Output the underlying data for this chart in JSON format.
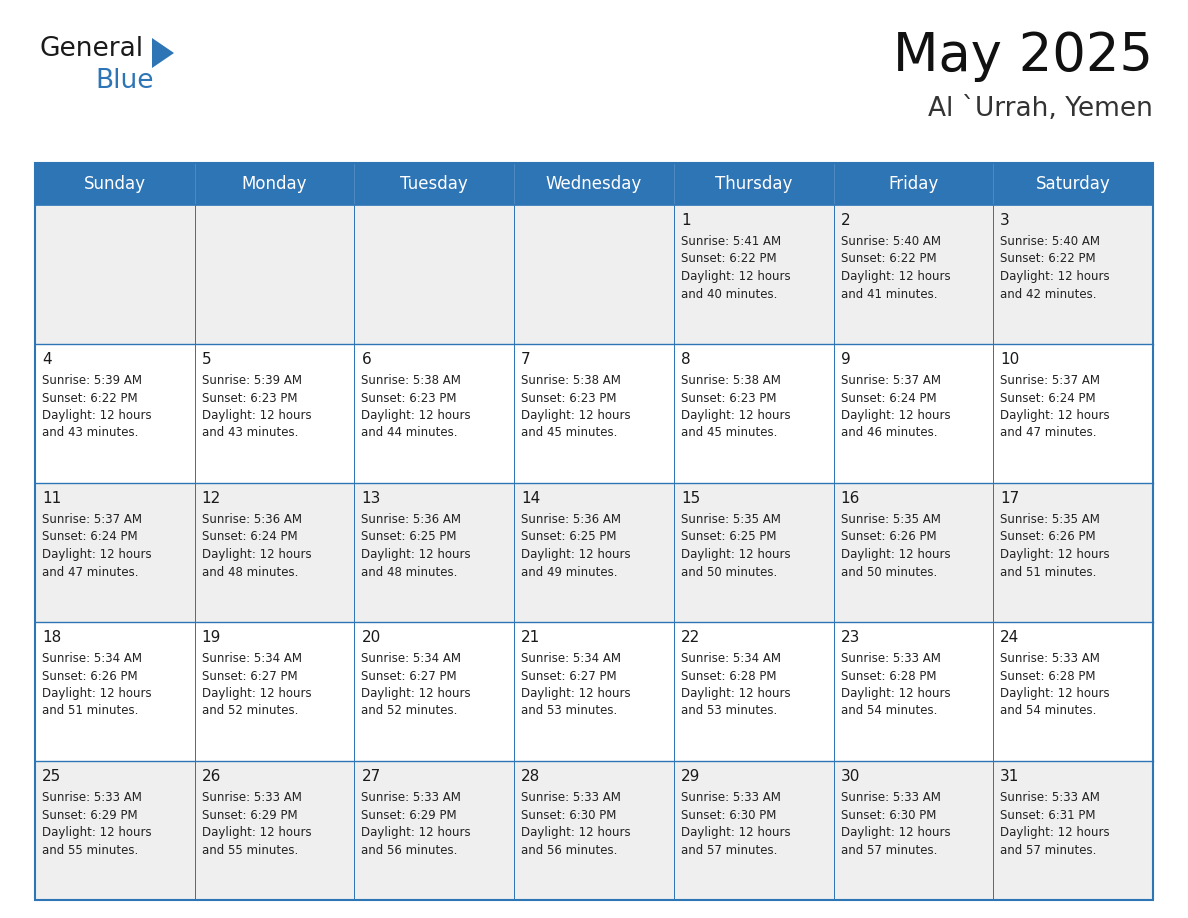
{
  "title": "May 2025",
  "location": "Al `Urrah, Yemen",
  "header_bg_color": "#2E75B6",
  "header_text_color": "#FFFFFF",
  "cell_bg_light": "#EFEFEF",
  "cell_bg_white": "#FFFFFF",
  "day_names": [
    "Sunday",
    "Monday",
    "Tuesday",
    "Wednesday",
    "Thursday",
    "Friday",
    "Saturday"
  ],
  "weeks": [
    [
      {
        "day": "",
        "sunrise": "",
        "sunset": "",
        "daylight": ""
      },
      {
        "day": "",
        "sunrise": "",
        "sunset": "",
        "daylight": ""
      },
      {
        "day": "",
        "sunrise": "",
        "sunset": "",
        "daylight": ""
      },
      {
        "day": "",
        "sunrise": "",
        "sunset": "",
        "daylight": ""
      },
      {
        "day": "1",
        "sunrise": "5:41 AM",
        "sunset": "6:22 PM",
        "daylight": "40 minutes."
      },
      {
        "day": "2",
        "sunrise": "5:40 AM",
        "sunset": "6:22 PM",
        "daylight": "41 minutes."
      },
      {
        "day": "3",
        "sunrise": "5:40 AM",
        "sunset": "6:22 PM",
        "daylight": "42 minutes."
      }
    ],
    [
      {
        "day": "4",
        "sunrise": "5:39 AM",
        "sunset": "6:22 PM",
        "daylight": "43 minutes."
      },
      {
        "day": "5",
        "sunrise": "5:39 AM",
        "sunset": "6:23 PM",
        "daylight": "43 minutes."
      },
      {
        "day": "6",
        "sunrise": "5:38 AM",
        "sunset": "6:23 PM",
        "daylight": "44 minutes."
      },
      {
        "day": "7",
        "sunrise": "5:38 AM",
        "sunset": "6:23 PM",
        "daylight": "45 minutes."
      },
      {
        "day": "8",
        "sunrise": "5:38 AM",
        "sunset": "6:23 PM",
        "daylight": "45 minutes."
      },
      {
        "day": "9",
        "sunrise": "5:37 AM",
        "sunset": "6:24 PM",
        "daylight": "46 minutes."
      },
      {
        "day": "10",
        "sunrise": "5:37 AM",
        "sunset": "6:24 PM",
        "daylight": "47 minutes."
      }
    ],
    [
      {
        "day": "11",
        "sunrise": "5:37 AM",
        "sunset": "6:24 PM",
        "daylight": "47 minutes."
      },
      {
        "day": "12",
        "sunrise": "5:36 AM",
        "sunset": "6:24 PM",
        "daylight": "48 minutes."
      },
      {
        "day": "13",
        "sunrise": "5:36 AM",
        "sunset": "6:25 PM",
        "daylight": "48 minutes."
      },
      {
        "day": "14",
        "sunrise": "5:36 AM",
        "sunset": "6:25 PM",
        "daylight": "49 minutes."
      },
      {
        "day": "15",
        "sunrise": "5:35 AM",
        "sunset": "6:25 PM",
        "daylight": "50 minutes."
      },
      {
        "day": "16",
        "sunrise": "5:35 AM",
        "sunset": "6:26 PM",
        "daylight": "50 minutes."
      },
      {
        "day": "17",
        "sunrise": "5:35 AM",
        "sunset": "6:26 PM",
        "daylight": "51 minutes."
      }
    ],
    [
      {
        "day": "18",
        "sunrise": "5:34 AM",
        "sunset": "6:26 PM",
        "daylight": "51 minutes."
      },
      {
        "day": "19",
        "sunrise": "5:34 AM",
        "sunset": "6:27 PM",
        "daylight": "52 minutes."
      },
      {
        "day": "20",
        "sunrise": "5:34 AM",
        "sunset": "6:27 PM",
        "daylight": "52 minutes."
      },
      {
        "day": "21",
        "sunrise": "5:34 AM",
        "sunset": "6:27 PM",
        "daylight": "53 minutes."
      },
      {
        "day": "22",
        "sunrise": "5:34 AM",
        "sunset": "6:28 PM",
        "daylight": "53 minutes."
      },
      {
        "day": "23",
        "sunrise": "5:33 AM",
        "sunset": "6:28 PM",
        "daylight": "54 minutes."
      },
      {
        "day": "24",
        "sunrise": "5:33 AM",
        "sunset": "6:28 PM",
        "daylight": "54 minutes."
      }
    ],
    [
      {
        "day": "25",
        "sunrise": "5:33 AM",
        "sunset": "6:29 PM",
        "daylight": "55 minutes."
      },
      {
        "day": "26",
        "sunrise": "5:33 AM",
        "sunset": "6:29 PM",
        "daylight": "55 minutes."
      },
      {
        "day": "27",
        "sunrise": "5:33 AM",
        "sunset": "6:29 PM",
        "daylight": "56 minutes."
      },
      {
        "day": "28",
        "sunrise": "5:33 AM",
        "sunset": "6:30 PM",
        "daylight": "56 minutes."
      },
      {
        "day": "29",
        "sunrise": "5:33 AM",
        "sunset": "6:30 PM",
        "daylight": "57 minutes."
      },
      {
        "day": "30",
        "sunrise": "5:33 AM",
        "sunset": "6:30 PM",
        "daylight": "57 minutes."
      },
      {
        "day": "31",
        "sunrise": "5:33 AM",
        "sunset": "6:31 PM",
        "daylight": "57 minutes."
      }
    ]
  ],
  "title_fontsize": 38,
  "subtitle_fontsize": 19,
  "header_fontsize": 12,
  "day_num_fontsize": 11,
  "cell_text_fontsize": 8.5,
  "border_color": "#2E75B6",
  "text_color": "#1a1a1a"
}
